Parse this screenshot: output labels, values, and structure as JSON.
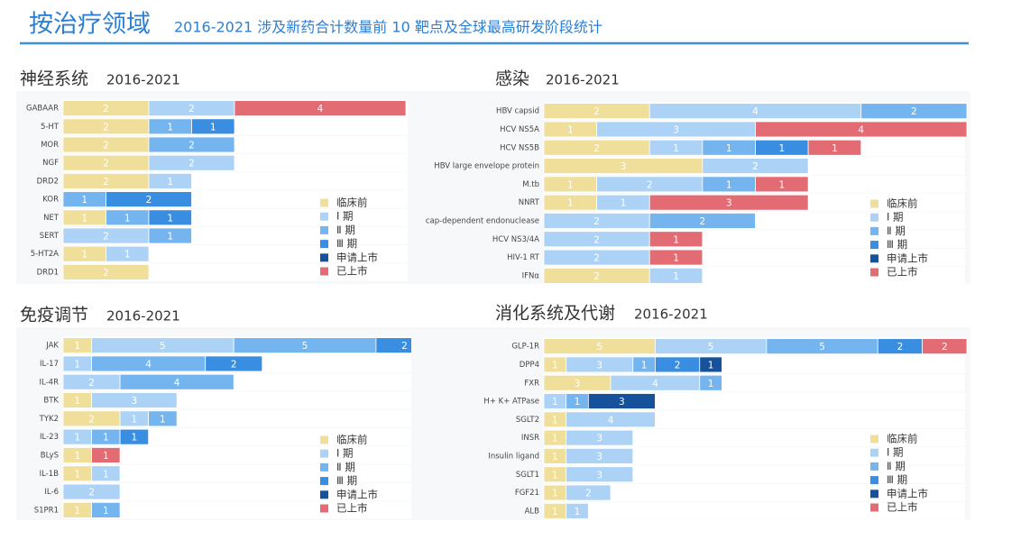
{
  "header": {
    "title": "按治疗领域",
    "subtitle": "2016-2021 涉及新药合计数量前 10 靶点及全球最高研发阶段统计"
  },
  "chart_data": [
    {
      "type": "bar",
      "orientation": "horizontal",
      "stacked": true,
      "title": "神经系统",
      "subtitle": "2016-2021",
      "categories": [
        "GABAAR",
        "5-HT",
        "MOR",
        "NGF",
        "DRD2",
        "KOR",
        "NET",
        "SERT",
        "5-HT2A",
        "DRD1"
      ],
      "series": [
        {
          "name": "临床前",
          "color": "#f0df9b",
          "values": [
            2,
            2,
            2,
            2,
            2,
            null,
            1,
            null,
            1,
            2
          ]
        },
        {
          "name": "Ⅰ 期",
          "color": "#acd3f6",
          "values": [
            2,
            null,
            null,
            2,
            1,
            null,
            null,
            2,
            1,
            null
          ]
        },
        {
          "name": "Ⅱ 期",
          "color": "#74b4ef",
          "values": [
            null,
            1,
            2,
            null,
            null,
            1,
            1,
            1,
            null,
            null
          ]
        },
        {
          "name": "Ⅲ 期",
          "color": "#3a8ee2",
          "values": [
            null,
            1,
            null,
            null,
            null,
            2,
            1,
            null,
            null,
            null
          ]
        },
        {
          "name": "申请上市",
          "color": "#16529c",
          "values": [
            null,
            null,
            null,
            null,
            null,
            null,
            null,
            null,
            null,
            null
          ]
        },
        {
          "name": "已上市",
          "color": "#e26b74",
          "values": [
            4,
            null,
            null,
            null,
            null,
            null,
            null,
            null,
            null,
            null
          ]
        }
      ]
    },
    {
      "type": "bar",
      "orientation": "horizontal",
      "stacked": true,
      "title": "感染",
      "subtitle": "2016-2021",
      "categories": [
        "HBV capsid",
        "HCV NS5A",
        "HCV NS5B",
        "HBV large envelope protein",
        "M.tb",
        "NNRT",
        "cap-dependent endonuclease",
        "HCV NS3/4A",
        "HIV-1 RT",
        "IFNα"
      ],
      "series": [
        {
          "name": "临床前",
          "color": "#f0df9b",
          "values": [
            2,
            1,
            2,
            3,
            1,
            1,
            null,
            null,
            null,
            2
          ]
        },
        {
          "name": "Ⅰ 期",
          "color": "#acd3f6",
          "values": [
            4,
            3,
            1,
            2,
            2,
            1,
            2,
            2,
            2,
            1
          ]
        },
        {
          "name": "Ⅱ 期",
          "color": "#74b4ef",
          "values": [
            2,
            null,
            1,
            null,
            1,
            null,
            2,
            null,
            null,
            null
          ]
        },
        {
          "name": "Ⅲ 期",
          "color": "#3a8ee2",
          "values": [
            null,
            null,
            1,
            null,
            null,
            null,
            null,
            null,
            null,
            null
          ]
        },
        {
          "name": "申请上市",
          "color": "#16529c",
          "values": [
            null,
            null,
            null,
            null,
            null,
            null,
            null,
            null,
            null,
            null
          ]
        },
        {
          "name": "已上市",
          "color": "#e26b74",
          "values": [
            null,
            4,
            1,
            null,
            1,
            3,
            null,
            1,
            1,
            null
          ]
        }
      ]
    },
    {
      "type": "bar",
      "orientation": "horizontal",
      "stacked": true,
      "title": "免疫调节",
      "subtitle": "2016-2021",
      "categories": [
        "JAK",
        "IL-17",
        "IL-4R",
        "BTK",
        "TYK2",
        "IL-23",
        "BLyS",
        "IL-1B",
        "IL-6",
        "S1PR1"
      ],
      "series": [
        {
          "name": "临床前",
          "color": "#f0df9b",
          "values": [
            1,
            null,
            null,
            1,
            2,
            null,
            1,
            1,
            null,
            1
          ]
        },
        {
          "name": "Ⅰ 期",
          "color": "#acd3f6",
          "values": [
            5,
            1,
            2,
            3,
            1,
            1,
            null,
            1,
            2,
            null
          ]
        },
        {
          "name": "Ⅱ 期",
          "color": "#74b4ef",
          "values": [
            5,
            4,
            4,
            null,
            1,
            1,
            null,
            null,
            null,
            1
          ]
        },
        {
          "name": "Ⅲ 期",
          "color": "#3a8ee2",
          "values": [
            2,
            2,
            null,
            null,
            null,
            1,
            null,
            null,
            null,
            null
          ]
        },
        {
          "name": "申请上市",
          "color": "#16529c",
          "values": [
            null,
            null,
            null,
            null,
            null,
            null,
            null,
            null,
            null,
            null
          ]
        },
        {
          "name": "已上市",
          "color": "#e26b74",
          "values": [
            null,
            null,
            null,
            null,
            null,
            null,
            1,
            null,
            null,
            null
          ]
        }
      ]
    },
    {
      "type": "bar",
      "orientation": "horizontal",
      "stacked": true,
      "title": "消化系统及代谢",
      "subtitle": "2016-2021",
      "categories": [
        "GLP-1R",
        "DPP4",
        "FXR",
        "H+ K+ ATPase",
        "SGLT2",
        "INSR",
        "Insulin ligand",
        "SGLT1",
        "FGF21",
        "ALB"
      ],
      "series": [
        {
          "name": "临床前",
          "color": "#f0df9b",
          "values": [
            5,
            1,
            3,
            null,
            1,
            1,
            1,
            1,
            1,
            1
          ]
        },
        {
          "name": "Ⅰ 期",
          "color": "#acd3f6",
          "values": [
            5,
            3,
            4,
            1,
            4,
            3,
            3,
            3,
            2,
            1
          ]
        },
        {
          "name": "Ⅱ 期",
          "color": "#74b4ef",
          "values": [
            5,
            1,
            1,
            1,
            null,
            null,
            null,
            null,
            null,
            null
          ]
        },
        {
          "name": "Ⅲ 期",
          "color": "#3a8ee2",
          "values": [
            2,
            2,
            null,
            null,
            null,
            null,
            null,
            null,
            null,
            null
          ]
        },
        {
          "name": "申请上市",
          "color": "#16529c",
          "values": [
            null,
            1,
            null,
            3,
            null,
            null,
            null,
            null,
            null,
            null
          ]
        },
        {
          "name": "已上市",
          "color": "#e26b74",
          "values": [
            2,
            null,
            null,
            null,
            null,
            null,
            null,
            null,
            null,
            null
          ]
        }
      ]
    }
  ]
}
